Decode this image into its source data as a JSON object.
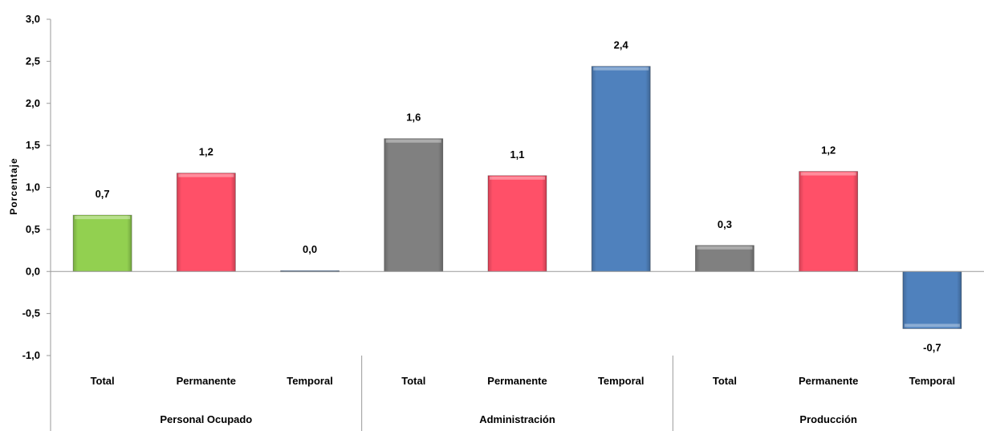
{
  "chart_data": {
    "type": "bar",
    "ylabel": "Porcentaje",
    "ylim": [
      -1.0,
      3.0
    ],
    "ytick_step": 0.5,
    "yticks": [
      "3,0",
      "2,5",
      "2,0",
      "1,5",
      "1,0",
      "0,5",
      "0,0",
      "-0,5",
      "-1,0"
    ],
    "groups": [
      {
        "label": "Personal Ocupado",
        "bars": [
          {
            "category": "Total",
            "value": 0.67,
            "label": "0,7",
            "color": "#92d050"
          },
          {
            "category": "Permanente",
            "value": 1.17,
            "label": "1,2",
            "color": "#ff5068"
          },
          {
            "category": "Temporal",
            "value": 0.01,
            "label": "0,0",
            "color": "#4f81bd"
          }
        ]
      },
      {
        "label": "Administración",
        "bars": [
          {
            "category": "Total",
            "value": 1.58,
            "label": "1,6",
            "color": "#808080"
          },
          {
            "category": "Permanente",
            "value": 1.14,
            "label": "1,1",
            "color": "#ff5068"
          },
          {
            "category": "Temporal",
            "value": 2.44,
            "label": "2,4",
            "color": "#4f81bd"
          }
        ]
      },
      {
        "label": "Producción",
        "bars": [
          {
            "category": "Total",
            "value": 0.31,
            "label": "0,3",
            "color": "#808080"
          },
          {
            "category": "Permanente",
            "value": 1.19,
            "label": "1,2",
            "color": "#ff5068"
          },
          {
            "category": "Temporal",
            "value": -0.68,
            "label": "-0,7",
            "color": "#4f81bd"
          }
        ]
      }
    ],
    "grid": false,
    "legend": "none"
  }
}
